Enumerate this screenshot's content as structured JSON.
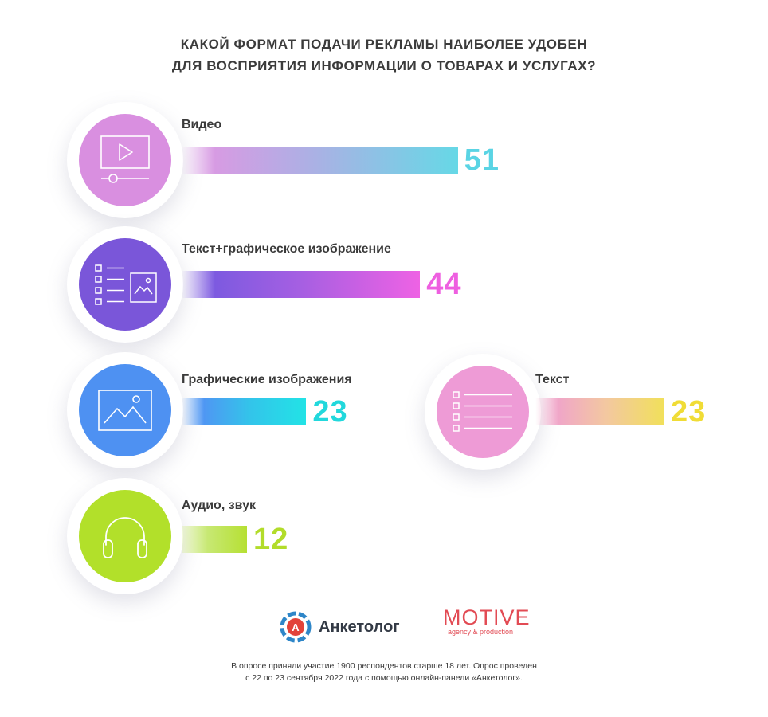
{
  "title_lines": [
    "КАКОЙ ФОРМАТ ПОДАЧИ РЕКЛАМЫ НАИБОЛЕЕ УДОБЕН",
    "ДЛЯ ВОСПРИЯТИЯ ИНФОРМАЦИИ О ТОВАРАХ И УСЛУГАХ?"
  ],
  "chart_data": {
    "type": "bar",
    "categories": [
      "Видео",
      "Текст+графическое изображение",
      "Графические изображения",
      "Текст",
      "Аудио, звук"
    ],
    "values": [
      51,
      44,
      23,
      23,
      12
    ],
    "value_labels": [
      "51",
      "44",
      "23",
      "23",
      "12"
    ],
    "colors": {
      "video": "#66d8e6",
      "text_image": "#ee62e4",
      "images": "#22e3e6",
      "text": "#f1e05a",
      "audio": "#b6e033"
    },
    "icons": [
      "video-player-icon",
      "text-image-icon",
      "image-icon",
      "text-list-icon",
      "headphones-icon"
    ]
  },
  "footer": {
    "logo_anketolog": "Анкетолог",
    "logo_anketolog_mark": "А",
    "logo_motive": "MOTIVE",
    "logo_motive_sub": "agency & production",
    "note_lines": [
      "В опросе приняли участие 1900 респондентов старше 18 лет. Опрос проведен",
      "с 22 по 23 сентября 2022 года с помощью онлайн-панели «Анкетолог»."
    ]
  }
}
